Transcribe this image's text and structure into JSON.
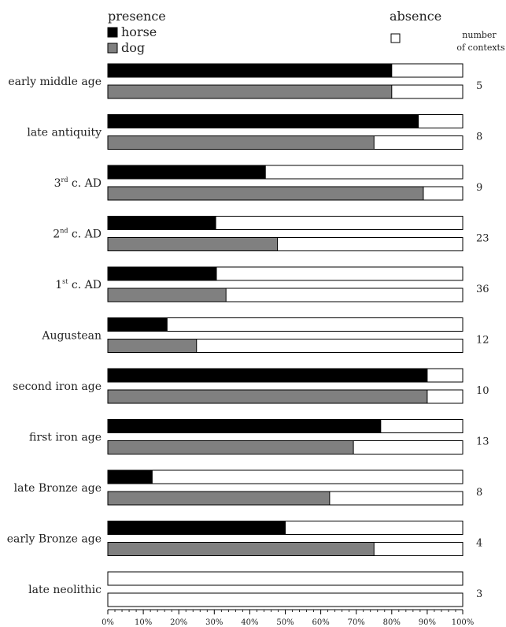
{
  "chart_data": {
    "type": "bar",
    "orientation": "horizontal",
    "stacked_percent": true,
    "legend": {
      "presence_title": "presence",
      "absence_title": "absence",
      "series": [
        {
          "name": "horse",
          "color": "#000000"
        },
        {
          "name": "dog",
          "color": "#808080"
        }
      ],
      "absence_color": "#ffffff",
      "count_header_line1": "number",
      "count_header_line2": "of contexts"
    },
    "categories": [
      {
        "label": "early middle age",
        "horse": 80,
        "dog": 80,
        "contexts": "5"
      },
      {
        "label": "late antiquity",
        "horse": 87.5,
        "dog": 75,
        "contexts": "8"
      },
      {
        "label_parts": [
          "3",
          "rd",
          " c. AD"
        ],
        "horse": 44.4,
        "dog": 88.9,
        "contexts": "9"
      },
      {
        "label_parts": [
          "2",
          "nd",
          " c. AD"
        ],
        "horse": 30.4,
        "dog": 47.8,
        "contexts": "23"
      },
      {
        "label_parts": [
          "1",
          "st",
          " c. AD"
        ],
        "horse": 30.6,
        "dog": 33.3,
        "contexts": "36"
      },
      {
        "label": "Augustean",
        "horse": 16.7,
        "dog": 25,
        "contexts": "12"
      },
      {
        "label": "second iron age",
        "horse": 90,
        "dog": 90,
        "contexts": "10"
      },
      {
        "label": "first iron age",
        "horse": 76.9,
        "dog": 69.2,
        "contexts": "13"
      },
      {
        "label": "late Bronze age",
        "horse": 12.5,
        "dog": 62.5,
        "contexts": "8"
      },
      {
        "label": "early Bronze age",
        "horse": 50,
        "dog": 75,
        "contexts": "4"
      },
      {
        "label": "late neolithic",
        "horse": 0,
        "dog": 0,
        "contexts": "3"
      }
    ],
    "x_ticks": [
      "0%",
      "10%",
      "20%",
      "30%",
      "40%",
      "50%",
      "60%",
      "70%",
      "80%",
      "90%",
      "100%"
    ],
    "xlim": [
      0,
      100
    ],
    "grid": false,
    "legend_position": "top"
  }
}
